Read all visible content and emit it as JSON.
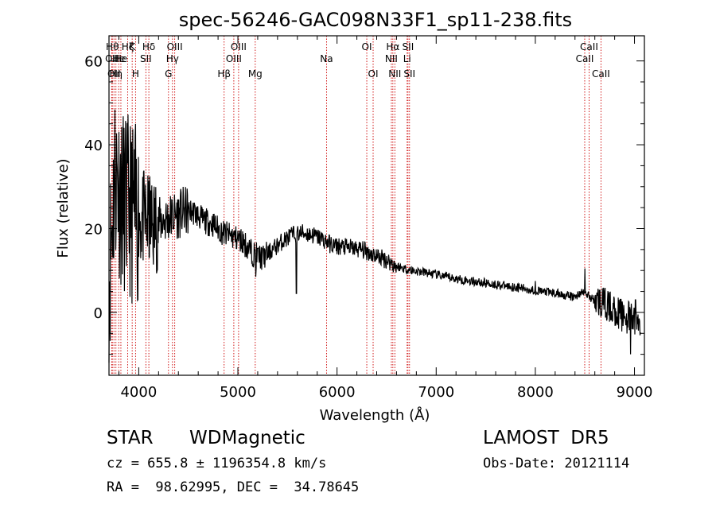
{
  "chart_data": {
    "type": "line",
    "title": "spec-56246-GAC098N33F1_sp11-238.fits",
    "xlabel": "Wavelength (Å)",
    "ylabel": "Flux (relative)",
    "xlim": [
      3700,
      9100
    ],
    "ylim": [
      -15,
      66
    ],
    "x_ticks": [
      4000,
      5000,
      6000,
      7000,
      8000,
      9000
    ],
    "y_ticks": [
      0,
      20,
      40,
      60
    ],
    "grid": false,
    "colors": {
      "spectrum": "#000000",
      "line_markers": "#cc0000"
    },
    "spectrum_anchors": [
      [
        3700,
        8
      ],
      [
        3760,
        34
      ],
      [
        3830,
        27
      ],
      [
        3900,
        25
      ],
      [
        3970,
        23
      ],
      [
        4050,
        22
      ],
      [
        4150,
        21
      ],
      [
        4250,
        22
      ],
      [
        4350,
        23
      ],
      [
        4450,
        24
      ],
      [
        4550,
        24
      ],
      [
        4650,
        22
      ],
      [
        4750,
        21
      ],
      [
        4850,
        19
      ],
      [
        4950,
        18
      ],
      [
        5050,
        17
      ],
      [
        5150,
        14
      ],
      [
        5250,
        13
      ],
      [
        5350,
        15
      ],
      [
        5450,
        17
      ],
      [
        5550,
        18.5
      ],
      [
        5650,
        19
      ],
      [
        5750,
        18.5
      ],
      [
        5850,
        17.5
      ],
      [
        5950,
        16
      ],
      [
        6100,
        15.5
      ],
      [
        6250,
        15
      ],
      [
        6400,
        13.5
      ],
      [
        6500,
        12.5
      ],
      [
        6600,
        11
      ],
      [
        6750,
        10
      ],
      [
        6900,
        9.5
      ],
      [
        7000,
        9
      ],
      [
        7200,
        8
      ],
      [
        7500,
        7
      ],
      [
        7800,
        6
      ],
      [
        8000,
        5.2
      ],
      [
        8200,
        4.6
      ],
      [
        8400,
        3.6
      ],
      [
        8460,
        4.8
      ],
      [
        8500,
        4.5
      ],
      [
        8560,
        3.5
      ],
      [
        8700,
        2
      ],
      [
        8800,
        0.5
      ],
      [
        8900,
        -1
      ],
      [
        9000,
        -2
      ],
      [
        9060,
        -3
      ]
    ],
    "spectrum_features": [
      {
        "x": 5590,
        "dip_to": 4.5
      },
      {
        "x": 5180,
        "dip_to": 8.5
      },
      {
        "x": 8000,
        "peak_to": 7.5
      },
      {
        "x": 8500,
        "peak_to": 10.5
      },
      {
        "x": 8560,
        "dip_to": 2.5
      },
      {
        "x": 8960,
        "dip_to": -10
      },
      {
        "x": 9010,
        "peak_to": 3
      }
    ],
    "spectral_lines": [
      {
        "x": 3734,
        "label": "Hθ",
        "row": 1
      },
      {
        "x": 3727,
        "label": "OII",
        "row": 2
      },
      {
        "x": 3750,
        "label": "OII",
        "row": 3
      },
      {
        "x": 3770,
        "label": "Hη",
        "row": 3
      },
      {
        "x": 3798,
        "label": "He",
        "row": 2
      },
      {
        "x": 3820,
        "label": "He",
        "row": 2
      },
      {
        "x": 3889,
        "label": "Hζ",
        "row": 1
      },
      {
        "x": 3934,
        "label": "K",
        "row": 1
      },
      {
        "x": 3968,
        "label": "H",
        "row": 3
      },
      {
        "x": 4072,
        "label": "SII",
        "row": 2
      },
      {
        "x": 4102,
        "label": "Hδ",
        "row": 1
      },
      {
        "x": 4300,
        "label": "G",
        "row": 3
      },
      {
        "x": 4340,
        "label": "Hγ",
        "row": 2
      },
      {
        "x": 4363,
        "label": "OIII",
        "row": 1
      },
      {
        "x": 4861,
        "label": "Hβ",
        "row": 3
      },
      {
        "x": 4959,
        "label": "OIII",
        "row": 2
      },
      {
        "x": 5007,
        "label": "OIII",
        "row": 1
      },
      {
        "x": 5175,
        "label": "Mg",
        "row": 3
      },
      {
        "x": 5894,
        "label": "Na",
        "row": 2
      },
      {
        "x": 6300,
        "label": "OI",
        "row": 1
      },
      {
        "x": 6364,
        "label": "OI",
        "row": 3
      },
      {
        "x": 6548,
        "label": "NII",
        "row": 2
      },
      {
        "x": 6563,
        "label": "Hα",
        "row": 1
      },
      {
        "x": 6583,
        "label": "NII",
        "row": 3
      },
      {
        "x": 6707,
        "label": "Li",
        "row": 2
      },
      {
        "x": 6716,
        "label": "SII",
        "row": 1
      },
      {
        "x": 6731,
        "label": "SII",
        "row": 3
      },
      {
        "x": 8498,
        "label": "CaII",
        "row": 2
      },
      {
        "x": 8542,
        "label": "CaII",
        "row": 1
      },
      {
        "x": 8662,
        "label": "CaII",
        "row": 3
      }
    ]
  },
  "info": {
    "object_class": "STAR",
    "subclass": "WDMagnetic",
    "survey": "LAMOST  DR5",
    "cz_line": "cz = 655.8 ± 1196354.8 km/s",
    "obs_date": "Obs-Date: 20121114",
    "coords": "RA =  98.62995, DEC =  34.78645"
  }
}
